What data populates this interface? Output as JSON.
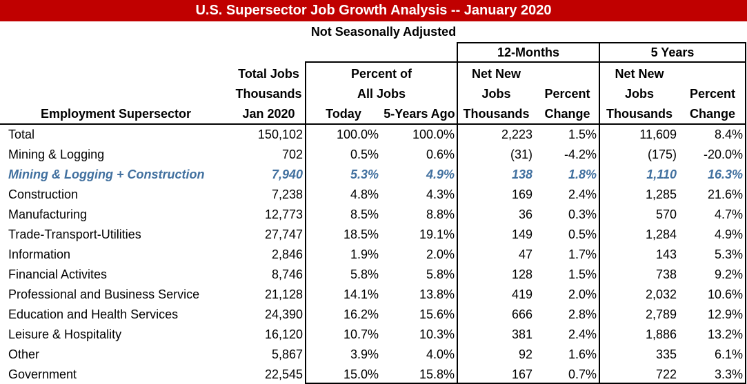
{
  "title": "U.S.  Supersector Job Growth Analysis -- January 2020",
  "subtitle": "Not Seasonally Adjusted",
  "colors": {
    "title_bg": "#C00000",
    "highlight_row": "#41709F"
  },
  "groups": {
    "twelve_months": "12-Months",
    "five_years": "5 Years"
  },
  "headers": {
    "sector": "Employment Supersector",
    "total_jobs": [
      "Total Jobs",
      "Thousands",
      "Jan 2020"
    ],
    "percent_of": [
      "Percent of",
      "All Jobs"
    ],
    "today": "Today",
    "five_years_ago": "5-Years Ago",
    "m12_net": [
      "Net New",
      "Jobs",
      "Thousands"
    ],
    "m12_pct": [
      "Percent",
      "Change"
    ],
    "y5_net": [
      "Net New",
      "Jobs",
      "Thousands"
    ],
    "y5_pct": [
      "Percent",
      "Change"
    ]
  },
  "rows": [
    {
      "sector": "Total",
      "total": "150,102",
      "today": "100.0%",
      "ago": "100.0%",
      "m12_net": "2,223",
      "m12_pct": "1.5%",
      "y5_net": "11,609",
      "y5_pct": "8.4%"
    },
    {
      "sector": "Mining & Logging",
      "total": "702",
      "today": "0.5%",
      "ago": "0.6%",
      "m12_net": "(31)",
      "m12_pct": "-4.2%",
      "y5_net": "(175)",
      "y5_pct": "-20.0%"
    },
    {
      "sector": "Mining & Logging + Construction",
      "total": "7,940",
      "today": "5.3%",
      "ago": "4.9%",
      "m12_net": "138",
      "m12_pct": "1.8%",
      "y5_net": "1,110",
      "y5_pct": "16.3%",
      "highlight": true
    },
    {
      "sector": "Construction",
      "total": "7,238",
      "today": "4.8%",
      "ago": "4.3%",
      "m12_net": "169",
      "m12_pct": "2.4%",
      "y5_net": "1,285",
      "y5_pct": "21.6%"
    },
    {
      "sector": "Manufacturing",
      "total": "12,773",
      "today": "8.5%",
      "ago": "8.8%",
      "m12_net": "36",
      "m12_pct": "0.3%",
      "y5_net": "570",
      "y5_pct": "4.7%"
    },
    {
      "sector": "Trade-Transport-Utilities",
      "total": "27,747",
      "today": "18.5%",
      "ago": "19.1%",
      "m12_net": "149",
      "m12_pct": "0.5%",
      "y5_net": "1,284",
      "y5_pct": "4.9%"
    },
    {
      "sector": "Information",
      "total": "2,846",
      "today": "1.9%",
      "ago": "2.0%",
      "m12_net": "47",
      "m12_pct": "1.7%",
      "y5_net": "143",
      "y5_pct": "5.3%"
    },
    {
      "sector": "Financial Activites",
      "total": "8,746",
      "today": "5.8%",
      "ago": "5.8%",
      "m12_net": "128",
      "m12_pct": "1.5%",
      "y5_net": "738",
      "y5_pct": "9.2%"
    },
    {
      "sector": "Professional and Business Service",
      "total": "21,128",
      "today": "14.1%",
      "ago": "13.8%",
      "m12_net": "419",
      "m12_pct": "2.0%",
      "y5_net": "2,032",
      "y5_pct": "10.6%"
    },
    {
      "sector": "Education and Health Services",
      "total": "24,390",
      "today": "16.2%",
      "ago": "15.6%",
      "m12_net": "666",
      "m12_pct": "2.8%",
      "y5_net": "2,789",
      "y5_pct": "12.9%"
    },
    {
      "sector": "Leisure & Hospitality",
      "total": "16,120",
      "today": "10.7%",
      "ago": "10.3%",
      "m12_net": "381",
      "m12_pct": "2.4%",
      "y5_net": "1,886",
      "y5_pct": "13.2%"
    },
    {
      "sector": "Other",
      "total": "5,867",
      "today": "3.9%",
      "ago": "4.0%",
      "m12_net": "92",
      "m12_pct": "1.6%",
      "y5_net": "335",
      "y5_pct": "6.1%"
    },
    {
      "sector": "Government",
      "total": "22,545",
      "today": "15.0%",
      "ago": "15.8%",
      "m12_net": "167",
      "m12_pct": "0.7%",
      "y5_net": "722",
      "y5_pct": "3.3%"
    }
  ]
}
